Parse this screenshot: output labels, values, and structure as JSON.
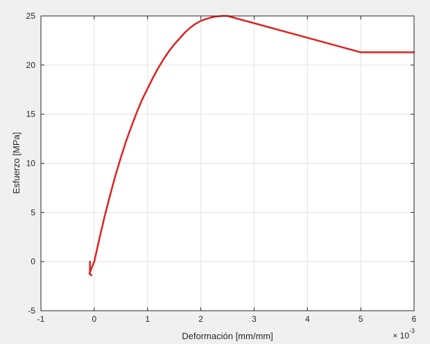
{
  "chart_data": {
    "type": "line",
    "title": "",
    "xlabel": "Deformación [mm/mm]",
    "ylabel": "Esfuerzo [MPa]",
    "xlim": [
      -1,
      6
    ],
    "ylim": [
      -5,
      25
    ],
    "x_scale_exponent": "-3",
    "x_multiplier_base": "× 10",
    "xticks": [
      -1,
      0,
      1,
      2,
      3,
      4,
      5,
      6
    ],
    "xtick_labels": [
      "-1",
      "0",
      "1",
      "2",
      "3",
      "4",
      "5",
      "6"
    ],
    "yticks": [
      -5,
      0,
      5,
      10,
      15,
      20,
      25
    ],
    "ytick_labels": [
      "-5",
      "0",
      "5",
      "10",
      "15",
      "20",
      "25"
    ],
    "grid": true,
    "legend": "none",
    "line_color": "#e02020",
    "series": [
      {
        "values": [
          [
            -0.08,
            0.0
          ],
          [
            -0.08,
            -1.3
          ],
          [
            -0.05,
            -1.4
          ],
          [
            -0.09,
            -1.2
          ],
          [
            0.0,
            0.0
          ],
          [
            0.1,
            2.4
          ],
          [
            0.2,
            4.7
          ],
          [
            0.3,
            6.8
          ],
          [
            0.4,
            8.8
          ],
          [
            0.5,
            10.6
          ],
          [
            0.6,
            12.3
          ],
          [
            0.7,
            13.8
          ],
          [
            0.8,
            15.2
          ],
          [
            0.9,
            16.5
          ],
          [
            1.0,
            17.6
          ],
          [
            1.1,
            18.7
          ],
          [
            1.2,
            19.7
          ],
          [
            1.3,
            20.6
          ],
          [
            1.4,
            21.4
          ],
          [
            1.5,
            22.1
          ],
          [
            1.6,
            22.7
          ],
          [
            1.7,
            23.3
          ],
          [
            1.8,
            23.8
          ],
          [
            1.9,
            24.2
          ],
          [
            2.0,
            24.5
          ],
          [
            2.1,
            24.7
          ],
          [
            2.2,
            24.85
          ],
          [
            2.3,
            24.95
          ],
          [
            2.4,
            25.0
          ],
          [
            2.5,
            25.0
          ],
          [
            5.0,
            21.3
          ],
          [
            6.0,
            21.3
          ]
        ]
      }
    ]
  }
}
